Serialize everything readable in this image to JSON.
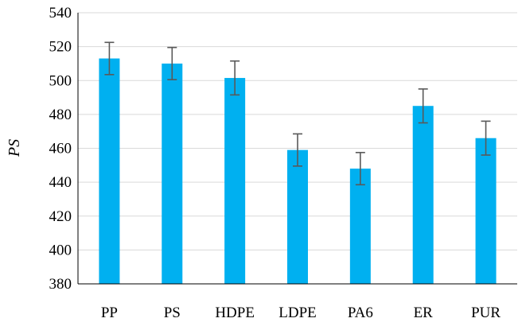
{
  "chart_data": {
    "type": "bar",
    "title": "",
    "xlabel": "",
    "ylabel": "PS",
    "ylim": [
      380,
      540
    ],
    "yticks": [
      380,
      400,
      420,
      440,
      460,
      480,
      500,
      520,
      540
    ],
    "grid": true,
    "legend": "none",
    "categories": [
      "PP",
      "PS",
      "HDPE",
      "LDPE",
      "PA6",
      "ER",
      "PUR"
    ],
    "values": [
      513,
      510,
      501.5,
      459,
      448,
      485,
      466
    ],
    "error": [
      9.5,
      9.5,
      10,
      9.5,
      9.5,
      10,
      10
    ],
    "colors": {
      "bar": "#00b0f0",
      "error_bar": "#595959",
      "grid": "#d9d9d9",
      "axis": "#000000"
    }
  }
}
